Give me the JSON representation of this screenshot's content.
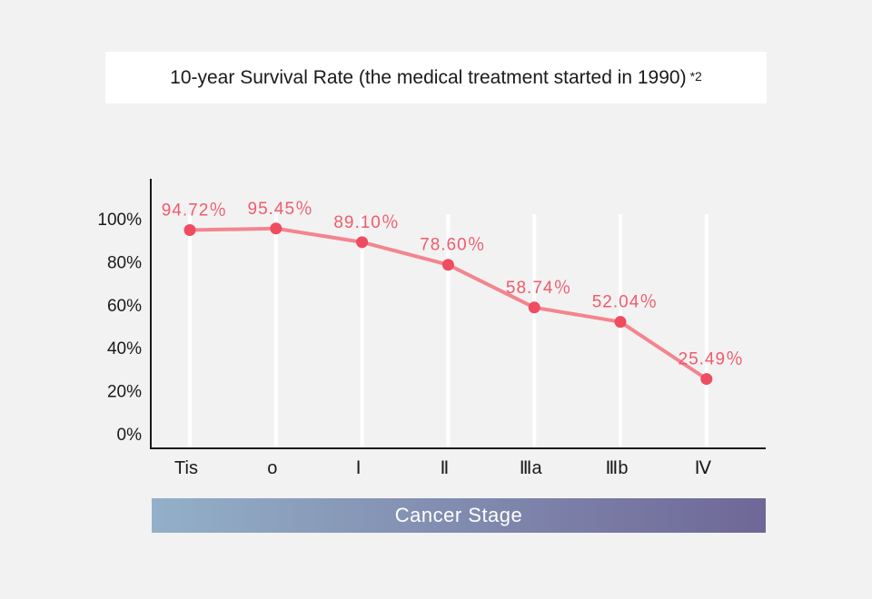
{
  "title": "10-year Survival Rate (the medical treatment started in 1990)",
  "title_note": "*2",
  "stage_bar": {
    "label": "Cancer Stage",
    "gradient_start": "#93b0c8",
    "gradient_end": "#6f6797"
  },
  "colors": {
    "line": "#f3858f",
    "point": "#ef4c5f",
    "label": "#ef5b6c",
    "gridline": "#ffffff",
    "axis": "#1a1a1a"
  },
  "chart_data": {
    "type": "line",
    "categories": [
      "Tis",
      "o",
      "Ⅰ",
      "Ⅱ",
      "Ⅲa",
      "Ⅲb",
      "Ⅳ"
    ],
    "values": [
      94.72,
      95.45,
      89.1,
      78.6,
      58.74,
      52.04,
      25.49
    ],
    "value_labels": [
      "94.72％",
      "95.45％",
      "89.10％",
      "78.60％",
      "58.74％",
      "52.04％",
      "25.49％"
    ],
    "y_ticks": [
      "0%",
      "20%",
      "40%",
      "60%",
      "80%",
      "100%"
    ],
    "y_tick_values": [
      0,
      20,
      40,
      60,
      80,
      100
    ],
    "ylim": [
      0,
      100
    ],
    "xlabel": "Cancer Stage",
    "grid": "vertical"
  }
}
